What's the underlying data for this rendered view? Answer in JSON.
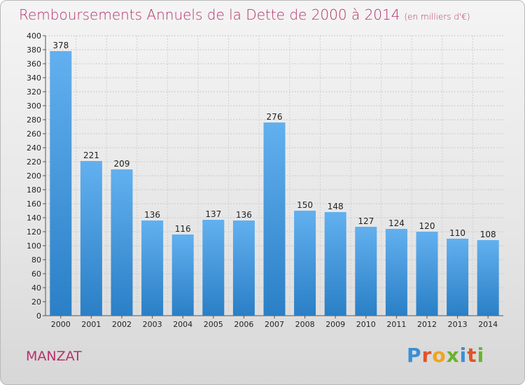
{
  "header": {
    "title": "Remboursements Annuels de la Dette de 2000 à 2014",
    "subtitle": "(en milliers d'€)"
  },
  "footer": {
    "commune": "MANZAT",
    "logo_letters": [
      "P",
      "r",
      "o",
      "x",
      "i",
      "t",
      "i"
    ]
  },
  "colors": {
    "accent": "#b5326b",
    "bar_top": "#62b0ef",
    "bar_bottom": "#2a7fc6",
    "logo": [
      "#3b8fd6",
      "#e0552a",
      "#f2a21e",
      "#6ab32e",
      "#3b8fd6",
      "#e0552a",
      "#6ab32e"
    ]
  },
  "chart_data": {
    "type": "bar",
    "title": "Remboursements Annuels de la Dette de 2000 à 2014",
    "subtitle": "(en milliers d'€)",
    "categories": [
      "2000",
      "2001",
      "2002",
      "2003",
      "2004",
      "2005",
      "2006",
      "2007",
      "2008",
      "2009",
      "2010",
      "2011",
      "2012",
      "2013",
      "2014"
    ],
    "values": [
      378,
      221,
      209,
      136,
      116,
      137,
      136,
      276,
      150,
      148,
      127,
      124,
      120,
      110,
      108
    ],
    "ylim": [
      0,
      400
    ],
    "ytick_step": 20,
    "grid": true
  }
}
